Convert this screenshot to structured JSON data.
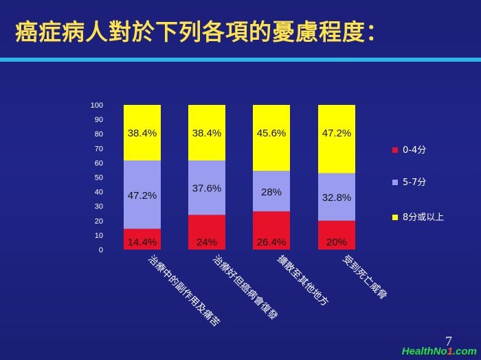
{
  "slide": {
    "title": "癌症病人對於下列各項的憂慮程度：",
    "page_number": "7",
    "watermark_text": "HealthNo",
    "watermark_accent": "1",
    "watermark_suffix": ".com"
  },
  "chart_data": {
    "type": "bar",
    "stacked": true,
    "title": "",
    "xlabel": "",
    "ylabel": "",
    "ylim": [
      0,
      100
    ],
    "yticks": [
      0,
      10,
      20,
      30,
      40,
      50,
      60,
      70,
      80,
      90,
      100
    ],
    "categories": [
      "治療中的副作用及痛苦",
      "治療好但癌病會復發",
      "擴散至其他地方",
      "受到死亡威脅"
    ],
    "series": [
      {
        "name": "0-4分",
        "color": "#e8112a",
        "values": [
          14.4,
          24,
          26.4,
          20
        ],
        "labels": [
          "14.4%",
          "24%",
          "26.4%",
          "20%"
        ]
      },
      {
        "name": "5-7分",
        "color": "#9a9cf0",
        "values": [
          47.2,
          37.6,
          28,
          32.8
        ],
        "labels": [
          "47.2%",
          "37.6%",
          "28%",
          "32.8%"
        ]
      },
      {
        "name": "8分或以上",
        "color": "#ffff00",
        "values": [
          38.4,
          38.4,
          45.6,
          47.2
        ],
        "labels": [
          "38.4%",
          "38.4%",
          "45.6%",
          "47.2%"
        ]
      }
    ],
    "legend_position": "right",
    "grid": false
  }
}
